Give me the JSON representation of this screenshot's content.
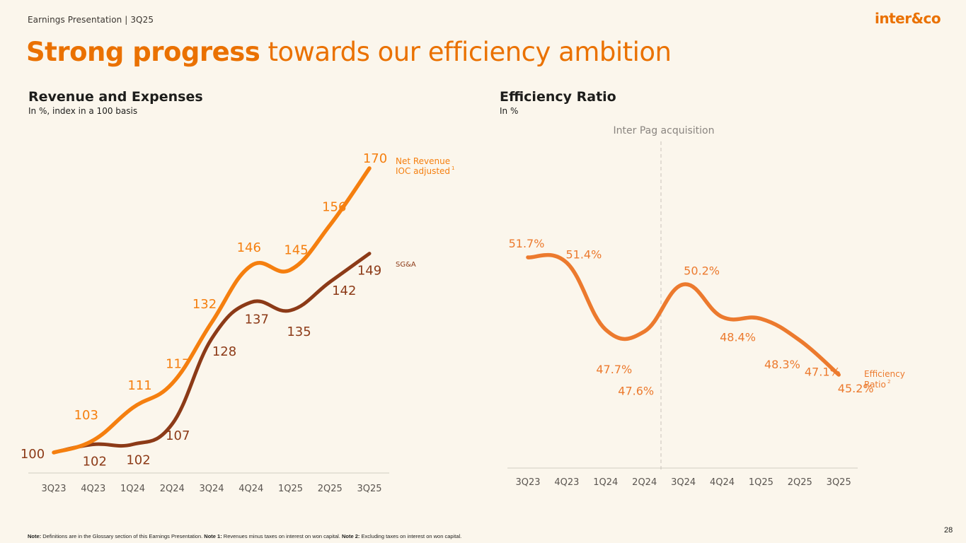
{
  "header": {
    "breadcrumb": "Earnings Presentation | 3Q25",
    "logo_text": "inter&co",
    "page_number": "28"
  },
  "title": {
    "bold": "Strong progress",
    "regular": " towards our efficiency ambition"
  },
  "footnote": {
    "note_label": "Note:",
    "note_text": " Definitions are in the Glossary section of this Earnings Presentation. ",
    "note1_label": "Note 1:",
    "note1_text": " Revenues minus taxes on interest on won capital. ",
    "note2_label": "Note 2:",
    "note2_text": " Excluding taxes on interest on won capital."
  },
  "colors": {
    "brand_orange": "#ea7100",
    "net_revenue": "#f57f0f",
    "sga": "#8c3a17",
    "efficiency": "#ec7a2e",
    "axis": "#e0dbd0",
    "tick_text": "#5a5550",
    "annotation": "#8a8580"
  },
  "chart_data": [
    {
      "type": "line",
      "title": "Revenue and Expenses",
      "subtitle": "In %, index in a 100 basis",
      "xlabel": "",
      "ylabel": "",
      "categories": [
        "3Q23",
        "4Q23",
        "1Q24",
        "2Q24",
        "3Q24",
        "4Q24",
        "1Q25",
        "2Q25",
        "3Q25"
      ],
      "ylim": [
        100,
        170
      ],
      "grid": false,
      "series": [
        {
          "name": "Net Revenue IOC adjusted",
          "superscript": "1",
          "values": [
            100,
            103,
            111,
            117,
            132,
            146,
            145,
            156,
            170
          ]
        },
        {
          "name": "SG&A",
          "superscript": "",
          "values": [
            100,
            102,
            102,
            107,
            128,
            137,
            135,
            142,
            149
          ]
        }
      ],
      "series_labels": {
        "net_revenue_line1": "Net Revenue",
        "net_revenue_line2": "IOC adjusted",
        "sga": "SG&A"
      }
    },
    {
      "type": "line",
      "title": "Efficiency Ratio",
      "subtitle": "In %",
      "xlabel": "",
      "ylabel": "",
      "categories": [
        "3Q23",
        "4Q23",
        "1Q24",
        "2Q24",
        "3Q24",
        "4Q24",
        "1Q25",
        "2Q25",
        "3Q25"
      ],
      "ylim": [
        45.2,
        51.7
      ],
      "grid": false,
      "annotation": "Inter Pag acquisition",
      "annotation_position": "between 2Q24 and 3Q24",
      "series": [
        {
          "name": "Efficiency Ratio",
          "superscript": "2",
          "values": [
            51.7,
            51.4,
            47.7,
            47.6,
            50.2,
            48.4,
            48.3,
            47.1,
            45.2
          ],
          "labels": [
            "51.7%",
            "51.4%",
            "47.7%",
            "47.6%",
            "50.2%",
            "48.4%",
            "48.3%",
            "47.1%",
            "45.2%"
          ]
        }
      ],
      "series_labels": {
        "line1": "Efficiency",
        "line2": "Ratio"
      }
    }
  ]
}
